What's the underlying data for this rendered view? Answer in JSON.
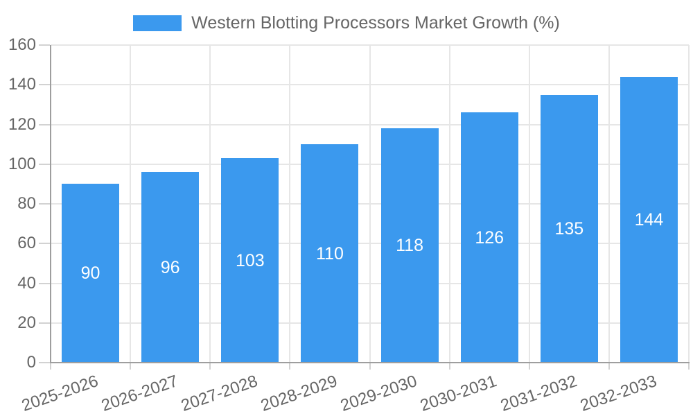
{
  "chart_data": {
    "type": "bar",
    "title": "Western Blotting Processors Market Growth (%)",
    "categories": [
      "2025-2026",
      "2026-2027",
      "2027-2028",
      "2028-2029",
      "2029-2030",
      "2030-2031",
      "2031-2032",
      "2032-2033"
    ],
    "series": [
      {
        "name": "Western Blotting Processors Market Growth (%)",
        "values": [
          90,
          96,
          103,
          110,
          118,
          126,
          135,
          144
        ]
      }
    ],
    "xlabel": "",
    "ylabel": "",
    "ylim": [
      0,
      160
    ],
    "yticks": [
      0,
      20,
      40,
      60,
      80,
      100,
      120,
      140,
      160
    ],
    "grid": "both",
    "legend_position": "top",
    "bar_color": "#3b99ee",
    "bar_label_color": "#ffffff",
    "axis_text_color": "#666666",
    "grid_color": "#e6e6e6",
    "axis_line_color": "#9e9e9e"
  }
}
